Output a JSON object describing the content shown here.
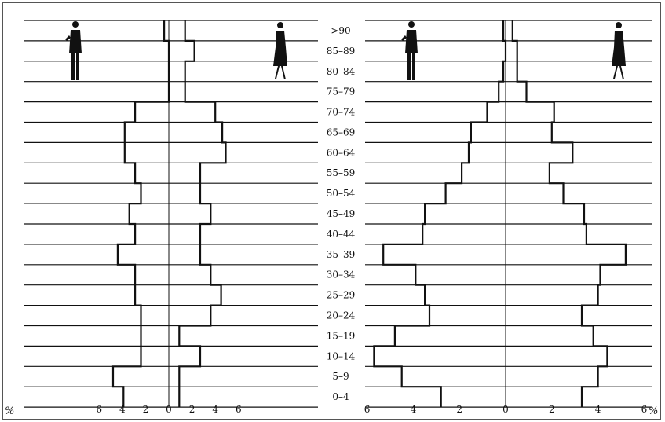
{
  "chart_data": [
    {
      "type": "bar",
      "panel": "left",
      "categories": [
        ">90",
        "85–89",
        "80–84",
        "75–79",
        "70–74",
        "65–69",
        "60–64",
        "55–59",
        "50–54",
        "45–49",
        "40–44",
        "35–39",
        "30–34",
        "25–29",
        "20–24",
        "15–19",
        "10–14",
        "5–9",
        "0–4"
      ],
      "series": [
        {
          "values": [
            0.4,
            0,
            0,
            0,
            2.9,
            3.8,
            3.8,
            2.9,
            2.4,
            3.4,
            2.9,
            4.4,
            2.9,
            2.9,
            2.4,
            2.4,
            2.4,
            4.8,
            3.9
          ]
        },
        {
          "values": [
            1.4,
            2.2,
            1.4,
            1.4,
            4.0,
            4.6,
            4.9,
            2.7,
            2.7,
            3.6,
            2.7,
            2.7,
            3.6,
            4.5,
            3.6,
            0.9,
            2.7,
            0.9,
            0.9
          ]
        }
      ],
      "xticks": [
        "6",
        "4",
        "2",
        "0",
        "2",
        "4",
        "6"
      ],
      "xlim": [
        -6,
        6
      ]
    },
    {
      "type": "bar",
      "panel": "right",
      "categories": [
        ">90",
        "85–89",
        "80–84",
        "75–79",
        "70–74",
        "65–69",
        "60–64",
        "55–59",
        "50–54",
        "45–49",
        "40–44",
        "35–39",
        "30–34",
        "25–29",
        "20–24",
        "15–19",
        "10–14",
        "5–9",
        "0–4"
      ],
      "series": [
        {
          "values": [
            0.1,
            0,
            0.1,
            0.3,
            0.8,
            1.5,
            1.6,
            1.9,
            2.6,
            3.5,
            3.6,
            5.3,
            3.9,
            3.5,
            3.3,
            4.8,
            5.7,
            4.5,
            2.8
          ]
        },
        {
          "values": [
            0.3,
            0.5,
            0.5,
            0.9,
            2.1,
            2.0,
            2.9,
            1.9,
            2.5,
            3.4,
            3.5,
            5.2,
            4.1,
            4.0,
            3.3,
            3.8,
            4.4,
            4.0,
            3.3
          ]
        }
      ],
      "xticks": [
        "6",
        "4",
        "2",
        "0",
        "2",
        "4",
        "6"
      ],
      "xlim": [
        -6,
        6
      ]
    }
  ],
  "unit_left": "%",
  "unit_right": "%",
  "icons": {
    "male": "man-silhouette-icon",
    "female": "woman-silhouette-icon"
  },
  "colors": {
    "ink": "#111111",
    "frame": "#555555",
    "background": "#ffffff"
  }
}
